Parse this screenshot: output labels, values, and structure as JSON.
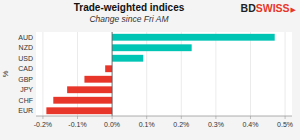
{
  "chart_data": {
    "type": "bar",
    "orientation": "horizontal",
    "title": "Trade-weighted indices",
    "subtitle": "Change since Fri AM",
    "ylabel": "%",
    "categories": [
      "EUR",
      "CHF",
      "JPY",
      "GBP",
      "CAD",
      "USD",
      "NZD",
      "AUD"
    ],
    "values": [
      -0.0019,
      -0.0017,
      -0.0013,
      -0.0008,
      -0.0002,
      0.0009,
      0.0023,
      0.0047
    ],
    "colors": [
      "#e8372a",
      "#e8372a",
      "#e8372a",
      "#e8372a",
      "#e8372a",
      "#00c4b4",
      "#00c4b4",
      "#00c4b4"
    ],
    "xlim": [
      -0.0022,
      0.0052
    ],
    "xticks": [
      {
        "value": -0.002,
        "label": "-0.2%"
      },
      {
        "value": -0.001,
        "label": "-0.1%"
      },
      {
        "value": 0.0,
        "label": "0.0%"
      },
      {
        "value": 0.001,
        "label": "0.1%"
      },
      {
        "value": 0.002,
        "label": "0.2%"
      },
      {
        "value": 0.003,
        "label": "0.3%"
      },
      {
        "value": 0.004,
        "label": "0.4%"
      },
      {
        "value": 0.005,
        "label": "0.5%"
      }
    ],
    "grid": true,
    "annotations": [
      {
        "text": "BD",
        "color": "#231f20"
      },
      {
        "text": "SWISS",
        "color": "#e8372a"
      },
      {
        "text": "▶",
        "color": "#e8372a"
      }
    ]
  }
}
